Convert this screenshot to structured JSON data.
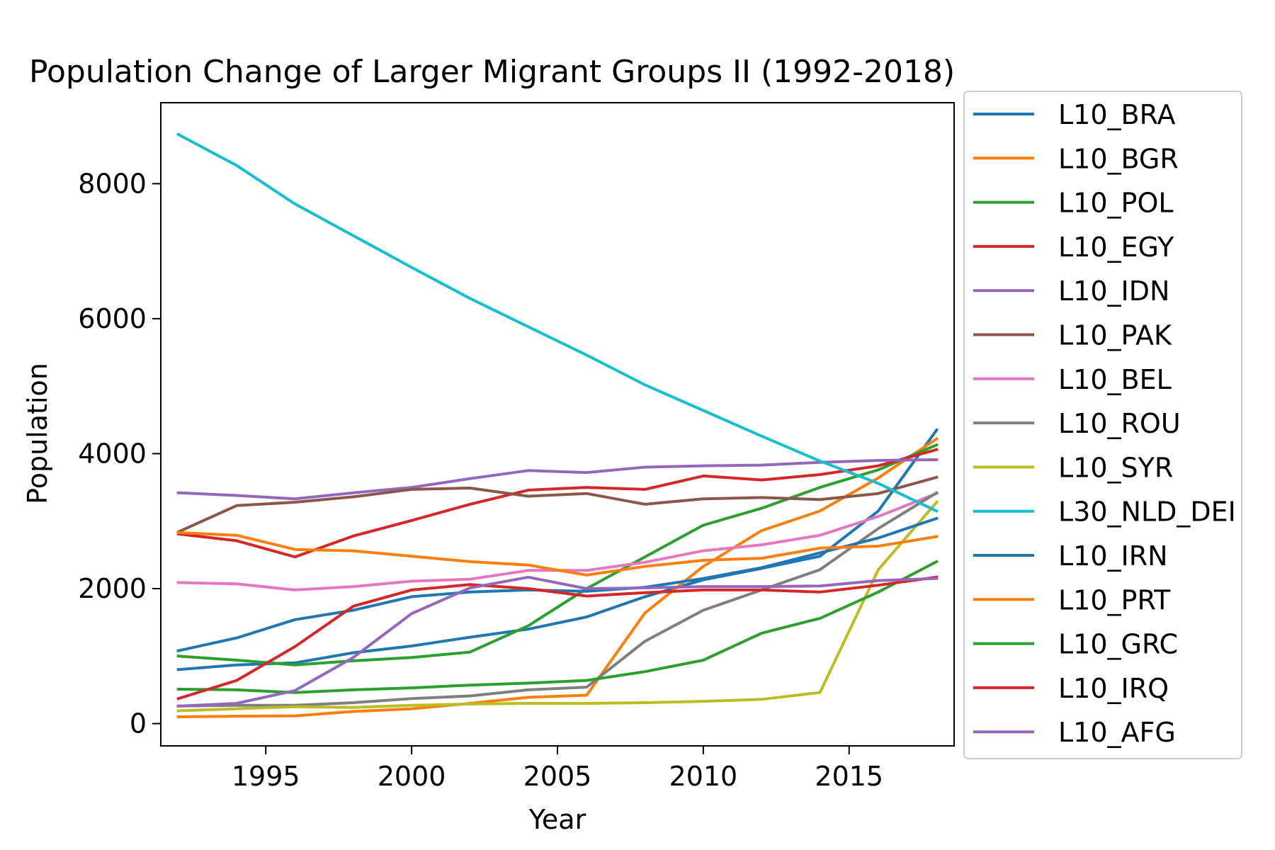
{
  "chart_data": {
    "type": "line",
    "title": "Population Change of Larger Migrant Groups II (1992-2018)",
    "xlabel": "Year",
    "ylabel": "Population",
    "xlim": [
      1991.4,
      2018.6
    ],
    "ylim": [
      -330,
      9200
    ],
    "x_ticks": [
      1995,
      2000,
      2005,
      2010,
      2015
    ],
    "y_ticks": [
      0,
      2000,
      4000,
      6000,
      8000
    ],
    "grid": false,
    "legend_position": "right, outside plot",
    "x": [
      1992,
      1994,
      1996,
      1998,
      2000,
      2002,
      2004,
      2006,
      2008,
      2010,
      2012,
      2014,
      2016,
      2018
    ],
    "series": [
      {
        "name": "L10_BRA",
        "color": "#1f77b4",
        "values": [
          800,
          870,
          900,
          1050,
          1150,
          1280,
          1400,
          1580,
          1880,
          2130,
          2300,
          2480,
          3150,
          4350
        ]
      },
      {
        "name": "L10_BGR",
        "color": "#ff7f0e",
        "values": [
          100,
          110,
          115,
          180,
          220,
          300,
          390,
          420,
          1640,
          2330,
          2860,
          3150,
          3640,
          4220
        ]
      },
      {
        "name": "L10_POL",
        "color": "#2ca02c",
        "values": [
          1000,
          940,
          870,
          930,
          980,
          1060,
          1450,
          2000,
          2470,
          2940,
          3190,
          3500,
          3760,
          4130
        ]
      },
      {
        "name": "L10_EGY",
        "color": "#d62728",
        "values": [
          2810,
          2710,
          2470,
          2780,
          3010,
          3250,
          3460,
          3500,
          3470,
          3670,
          3610,
          3690,
          3820,
          4060
        ]
      },
      {
        "name": "L10_IDN",
        "color": "#9467bd",
        "values": [
          3420,
          3380,
          3330,
          3420,
          3500,
          3630,
          3750,
          3720,
          3800,
          3820,
          3830,
          3870,
          3900,
          3910
        ]
      },
      {
        "name": "L10_PAK",
        "color": "#8c564b",
        "values": [
          2840,
          3230,
          3280,
          3360,
          3470,
          3490,
          3370,
          3410,
          3250,
          3330,
          3350,
          3320,
          3410,
          3650
        ]
      },
      {
        "name": "L10_BEL",
        "color": "#e377c2",
        "values": [
          2090,
          2070,
          1980,
          2030,
          2110,
          2140,
          2270,
          2270,
          2390,
          2560,
          2650,
          2790,
          3070,
          3410
        ]
      },
      {
        "name": "L10_ROU",
        "color": "#7f7f7f",
        "values": [
          260,
          270,
          270,
          310,
          370,
          410,
          500,
          540,
          1220,
          1680,
          1980,
          2280,
          2890,
          3420
        ]
      },
      {
        "name": "L10_SYR",
        "color": "#bcbd22",
        "values": [
          190,
          220,
          250,
          240,
          270,
          290,
          300,
          300,
          310,
          330,
          360,
          460,
          2280,
          3280
        ]
      },
      {
        "name": "L30_NLD_DEI",
        "color": "#17becf",
        "values": [
          8730,
          8270,
          7700,
          7230,
          6760,
          6300,
          5880,
          5460,
          5020,
          4640,
          4260,
          3890,
          3560,
          3150
        ]
      },
      {
        "name": "L10_IRN",
        "color": "#1f77b4",
        "values": [
          1080,
          1270,
          1540,
          1680,
          1880,
          1950,
          1980,
          1960,
          2020,
          2150,
          2310,
          2530,
          2750,
          3040
        ]
      },
      {
        "name": "L10_PRT",
        "color": "#ff7f0e",
        "values": [
          2830,
          2790,
          2580,
          2560,
          2480,
          2400,
          2350,
          2200,
          2330,
          2420,
          2450,
          2600,
          2630,
          2770
        ]
      },
      {
        "name": "L10_GRC",
        "color": "#2ca02c",
        "values": [
          510,
          500,
          460,
          500,
          530,
          570,
          600,
          640,
          770,
          940,
          1340,
          1560,
          1950,
          2400
        ]
      },
      {
        "name": "L10_IRQ",
        "color": "#d62728",
        "values": [
          370,
          640,
          1140,
          1740,
          1980,
          2060,
          2000,
          1890,
          1940,
          1980,
          1980,
          1950,
          2050,
          2170
        ]
      },
      {
        "name": "L10_AFG",
        "color": "#9467bd",
        "values": [
          260,
          300,
          490,
          980,
          1630,
          2010,
          2170,
          2000,
          2010,
          2030,
          2030,
          2040,
          2120,
          2150
        ]
      }
    ]
  }
}
